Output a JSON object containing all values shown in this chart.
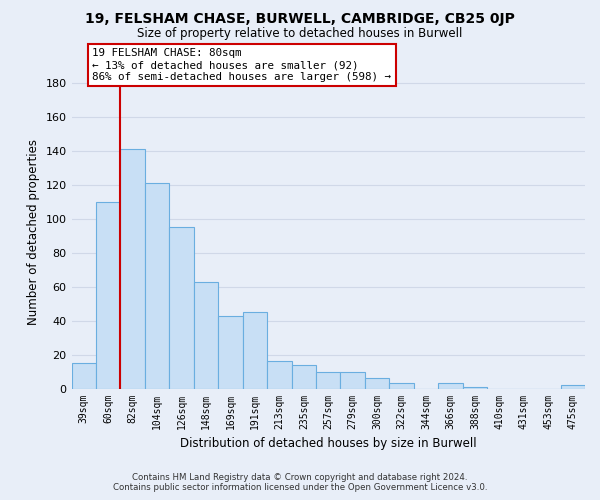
{
  "title": "19, FELSHAM CHASE, BURWELL, CAMBRIDGE, CB25 0JP",
  "subtitle": "Size of property relative to detached houses in Burwell",
  "xlabel": "Distribution of detached houses by size in Burwell",
  "ylabel": "Number of detached properties",
  "categories": [
    "39sqm",
    "60sqm",
    "82sqm",
    "104sqm",
    "126sqm",
    "148sqm",
    "169sqm",
    "191sqm",
    "213sqm",
    "235sqm",
    "257sqm",
    "279sqm",
    "300sqm",
    "322sqm",
    "344sqm",
    "366sqm",
    "388sqm",
    "410sqm",
    "431sqm",
    "453sqm",
    "475sqm"
  ],
  "values": [
    15,
    110,
    141,
    121,
    95,
    63,
    43,
    45,
    16,
    14,
    10,
    10,
    6,
    3,
    0,
    3,
    1,
    0,
    0,
    0,
    2
  ],
  "bar_color": "#c8dff5",
  "bar_edge_color": "#6aaee0",
  "highlight_bar_index": 2,
  "highlight_color": "#cc0000",
  "ylim": [
    0,
    185
  ],
  "yticks": [
    0,
    20,
    40,
    60,
    80,
    100,
    120,
    140,
    160,
    180
  ],
  "annotation_title": "19 FELSHAM CHASE: 80sqm",
  "annotation_line1": "← 13% of detached houses are smaller (92)",
  "annotation_line2": "86% of semi-detached houses are larger (598) →",
  "footer_line1": "Contains HM Land Registry data © Crown copyright and database right 2024.",
  "footer_line2": "Contains public sector information licensed under the Open Government Licence v3.0.",
  "background_color": "#e8eef8",
  "grid_color": "#d0d8e8",
  "ann_box_color": "#ffffff"
}
